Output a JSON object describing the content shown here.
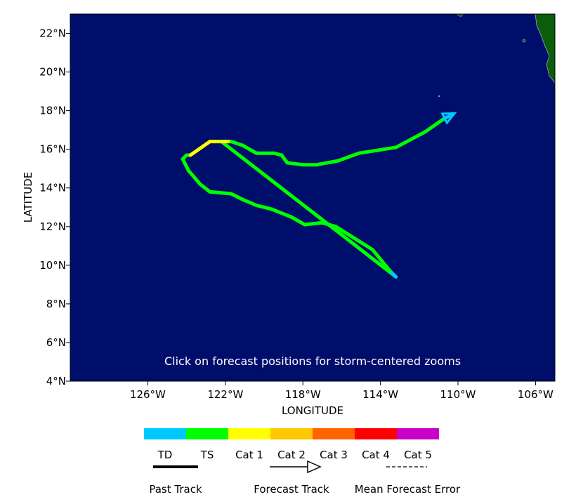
{
  "map": {
    "xlabel": "LONGITUDE",
    "ylabel": "LATITUDE",
    "xlim": [
      -130,
      -105
    ],
    "ylim": [
      4,
      23
    ],
    "xticks": [
      {
        "value": -126,
        "label": "126°W"
      },
      {
        "value": -122,
        "label": "122°W"
      },
      {
        "value": -118,
        "label": "118°W"
      },
      {
        "value": -114,
        "label": "114°W"
      },
      {
        "value": -110,
        "label": "110°W"
      },
      {
        "value": -106,
        "label": "106°W"
      }
    ],
    "yticks": [
      {
        "value": 4,
        "label": "4°N"
      },
      {
        "value": 6,
        "label": "6°N"
      },
      {
        "value": 8,
        "label": "8°N"
      },
      {
        "value": 10,
        "label": "10°N"
      },
      {
        "value": 12,
        "label": "12°N"
      },
      {
        "value": 14,
        "label": "14°N"
      },
      {
        "value": 16,
        "label": "16°N"
      },
      {
        "value": 18,
        "label": "18°N"
      },
      {
        "value": 20,
        "label": "20°N"
      },
      {
        "value": 22,
        "label": "22°N"
      }
    ],
    "ocean_color": "#000e6b",
    "land_color": "#0b5c0b",
    "annotation": "Click on forecast positions for storm-centered zooms",
    "categories": [
      {
        "name": "TD",
        "color": "#00c8ff"
      },
      {
        "name": "TS",
        "color": "#00ff00"
      },
      {
        "name": "Cat 1",
        "color": "#ffff00"
      },
      {
        "name": "Cat 2",
        "color": "#ffc800"
      },
      {
        "name": "Cat 3",
        "color": "#ff6400"
      },
      {
        "name": "Cat 4",
        "color": "#ff0000"
      },
      {
        "name": "Cat 5",
        "color": "#c800c8"
      }
    ],
    "tracks": [
      {
        "points": [
          {
            "lon": -122.2,
            "lat": 16.4,
            "cat": 1
          },
          {
            "lon": -113.2,
            "lat": 9.4,
            "cat": 1
          }
        ]
      },
      {
        "points": [
          {
            "lon": -113.2,
            "lat": 9.4,
            "cat": 0
          },
          {
            "lon": -113.5,
            "lat": 9.7,
            "cat": 1
          },
          {
            "lon": -114.4,
            "lat": 10.8,
            "cat": 1
          },
          {
            "lon": -116.3,
            "lat": 12.0,
            "cat": 1
          },
          {
            "lon": -117.0,
            "lat": 12.2,
            "cat": 1
          },
          {
            "lon": -117.9,
            "lat": 12.1,
            "cat": 1
          },
          {
            "lon": -118.6,
            "lat": 12.5,
            "cat": 1
          },
          {
            "lon": -119.6,
            "lat": 12.9,
            "cat": 1
          },
          {
            "lon": -120.4,
            "lat": 13.1,
            "cat": 1
          },
          {
            "lon": -121.1,
            "lat": 13.4,
            "cat": 1
          },
          {
            "lon": -121.7,
            "lat": 13.7,
            "cat": 1
          },
          {
            "lon": -122.8,
            "lat": 13.8,
            "cat": 1
          },
          {
            "lon": -123.3,
            "lat": 14.2,
            "cat": 1
          },
          {
            "lon": -123.9,
            "lat": 14.9,
            "cat": 1
          },
          {
            "lon": -124.2,
            "lat": 15.5,
            "cat": 1
          },
          {
            "lon": -124.0,
            "lat": 15.7,
            "cat": 1
          },
          {
            "lon": -123.8,
            "lat": 15.7,
            "cat": 2
          },
          {
            "lon": -122.8,
            "lat": 16.4,
            "cat": 2
          },
          {
            "lon": -121.7,
            "lat": 16.4,
            "cat": 1
          },
          {
            "lon": -121.1,
            "lat": 16.2,
            "cat": 1
          },
          {
            "lon": -120.4,
            "lat": 15.8,
            "cat": 1
          },
          {
            "lon": -119.5,
            "lat": 15.8,
            "cat": 1
          },
          {
            "lon": -119.1,
            "lat": 15.7,
            "cat": 1
          },
          {
            "lon": -118.8,
            "lat": 15.3,
            "cat": 1
          },
          {
            "lon": -118.0,
            "lat": 15.2,
            "cat": 1
          },
          {
            "lon": -117.3,
            "lat": 15.2,
            "cat": 1
          },
          {
            "lon": -116.2,
            "lat": 15.4,
            "cat": 1
          },
          {
            "lon": -115.1,
            "lat": 15.8,
            "cat": 1
          },
          {
            "lon": -113.2,
            "lat": 16.1,
            "cat": 1
          },
          {
            "lon": -111.7,
            "lat": 16.9,
            "cat": 1
          },
          {
            "lon": -110.7,
            "lat": 17.6,
            "cat": 0
          },
          {
            "lon": -110.3,
            "lat": 17.8,
            "cat": 0
          }
        ]
      }
    ],
    "legend": {
      "past": "Past Track",
      "forecast": "Forecast Track",
      "error": "Mean Forecast Error"
    }
  }
}
